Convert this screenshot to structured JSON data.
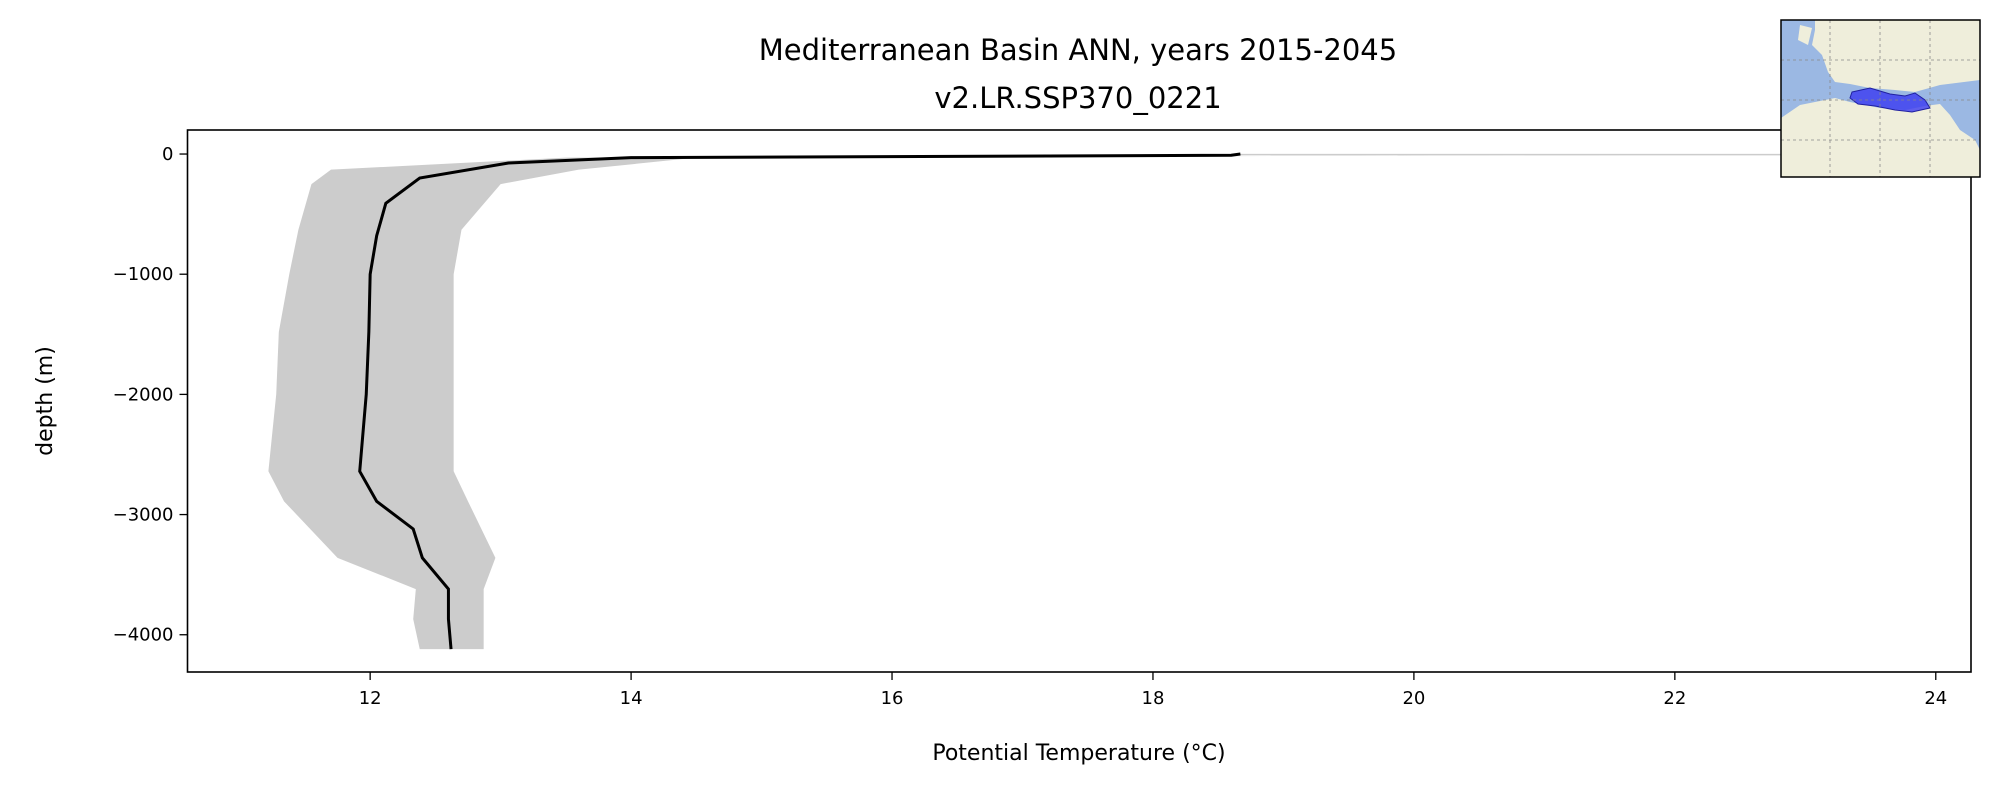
{
  "chart_data": {
    "type": "line",
    "title": [
      "Mediterranean Basin ANN, years 2015-2045",
      "v2.LR.SSP370_0221"
    ],
    "xlabel": "Potential Temperature (°C)",
    "ylabel": "depth (m)",
    "xlim": [
      10.6,
      24.27
    ],
    "ylim": [
      -4310,
      200
    ],
    "xticks": [
      12,
      14,
      16,
      18,
      20,
      22,
      24
    ],
    "xtick_labels": [
      "12",
      "14",
      "16",
      "18",
      "20",
      "22",
      "24"
    ],
    "yticks": [
      0,
      -1000,
      -2000,
      -3000,
      -4000
    ],
    "ytick_labels": [
      "0",
      "−1000",
      "−2000",
      "−3000",
      "−4000"
    ],
    "grid": false,
    "series": [
      {
        "role": "mean",
        "color": "#000000",
        "depth": [
          0,
          -10,
          -30,
          -75,
          -200,
          -410,
          -680,
          -1000,
          -1480,
          -2000,
          -2640,
          -2890,
          -3120,
          -3360,
          -3620,
          -3870,
          -4120
        ],
        "temperature": [
          18.67,
          18.6,
          14.0,
          13.06,
          12.38,
          12.12,
          12.05,
          12.0,
          11.99,
          11.97,
          11.92,
          12.05,
          12.33,
          12.4,
          12.6,
          12.6,
          12.62
        ]
      },
      {
        "role": "range",
        "color": "#cccccc",
        "depth": [
          0,
          -30,
          -130,
          -250,
          -630,
          -1000,
          -1480,
          -2000,
          -2640,
          -2890,
          -3360,
          -3620,
          -3870,
          -4120
        ],
        "lower": [
          24.3,
          13.5,
          11.7,
          11.55,
          11.45,
          11.38,
          11.3,
          11.28,
          11.22,
          11.34,
          11.75,
          12.35,
          12.33,
          12.38
        ],
        "upper": [
          24.3,
          14.5,
          13.6,
          13.0,
          12.7,
          12.64,
          12.64,
          12.64,
          12.64,
          12.75,
          12.96,
          12.87,
          12.87,
          12.87
        ]
      }
    ],
    "inset": {
      "type": "map",
      "region": "Mediterranean Basin",
      "ocean_color": "#9bb8e3",
      "land_color": "#efeedb",
      "region_color": "#3a3af0"
    }
  }
}
